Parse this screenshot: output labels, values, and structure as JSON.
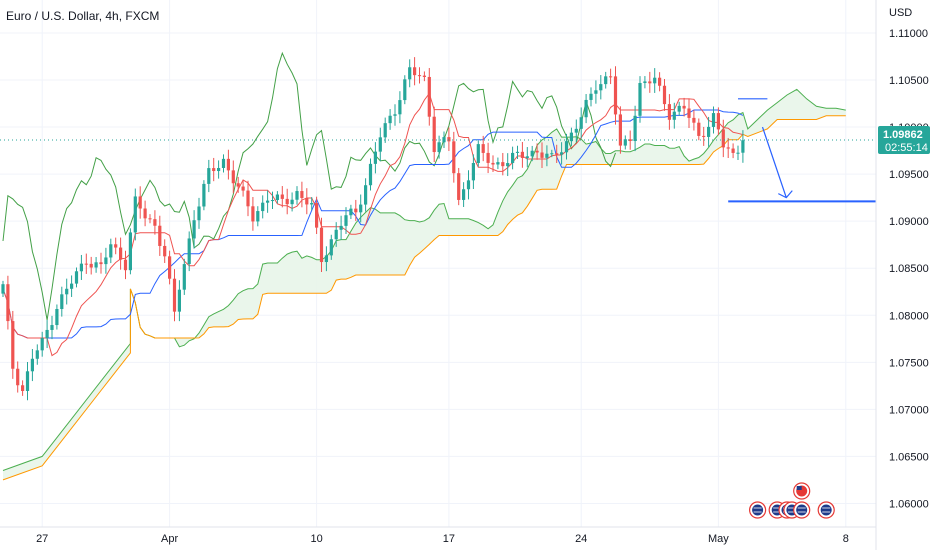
{
  "chart_data": {
    "type": "candlestick",
    "title": "Euro / U.S. Dollar, 4h, FXCM",
    "currency": "USD",
    "y_ticks": [
      "1.11000",
      "1.10500",
      "1.10000",
      "1.09500",
      "1.09000",
      "1.08500",
      "1.08000",
      "1.07500",
      "1.07000",
      "1.06500",
      "1.06000"
    ],
    "ylim": [
      1.0575,
      1.1135
    ],
    "x_ticks": [
      {
        "label": "27",
        "bar": 8
      },
      {
        "label": "Apr",
        "bar": 34
      },
      {
        "label": "10",
        "bar": 64
      },
      {
        "label": "17",
        "bar": 91
      },
      {
        "label": "24",
        "bar": 118
      },
      {
        "label": "May",
        "bar": 146
      },
      {
        "label": "8",
        "bar": 172
      }
    ],
    "bars_shown": 152,
    "last_price": "1.09862",
    "countdown": "02:55:14",
    "colors": {
      "up": "#26a69a",
      "down": "#ef5350",
      "tenkan": "#ef5350",
      "kijun": "#2962ff",
      "chikou": "#43a047",
      "span_a": "#4caf50",
      "span_b": "#ff9800",
      "cloud": "#e8f5e9",
      "projection": "#2962ff",
      "last_price_badge": "#26a69a"
    },
    "anchors": [
      [
        0,
        1.083
      ],
      [
        2,
        1.0745
      ],
      [
        4,
        1.072
      ],
      [
        6,
        1.0755
      ],
      [
        8,
        1.077
      ],
      [
        11,
        1.081
      ],
      [
        14,
        1.0835
      ],
      [
        17,
        1.086
      ],
      [
        20,
        1.085
      ],
      [
        22,
        1.0875
      ],
      [
        25,
        1.0855
      ],
      [
        27,
        1.092
      ],
      [
        29,
        1.0905
      ],
      [
        31,
        1.0895
      ],
      [
        33,
        1.0865
      ],
      [
        35,
        1.08
      ],
      [
        36,
        1.083
      ],
      [
        39,
        1.0905
      ],
      [
        42,
        1.095
      ],
      [
        45,
        1.0965
      ],
      [
        48,
        1.0935
      ],
      [
        51,
        1.0905
      ],
      [
        54,
        1.0925
      ],
      [
        57,
        1.092
      ],
      [
        60,
        1.093
      ],
      [
        63,
        1.0915
      ],
      [
        65,
        1.086
      ],
      [
        67,
        1.088
      ],
      [
        70,
        1.0905
      ],
      [
        72,
        1.091
      ],
      [
        74,
        1.094
      ],
      [
        77,
        1.099
      ],
      [
        80,
        1.102
      ],
      [
        83,
        1.106
      ],
      [
        86,
        1.105
      ],
      [
        88,
        1.098
      ],
      [
        91,
        1.0985
      ],
      [
        93,
        1.092
      ],
      [
        95,
        1.095
      ],
      [
        97,
        1.0975
      ],
      [
        100,
        1.096
      ],
      [
        103,
        1.0965
      ],
      [
        106,
        1.097
      ],
      [
        109,
        1.0975
      ],
      [
        112,
        1.0965
      ],
      [
        115,
        1.0985
      ],
      [
        118,
        1.101
      ],
      [
        121,
        1.1045
      ],
      [
        124,
        1.1055
      ],
      [
        126,
        1.0975
      ],
      [
        128,
        1.099
      ],
      [
        130,
        1.1045
      ],
      [
        133,
        1.105
      ],
      [
        136,
        1.1015
      ],
      [
        139,
        1.102
      ],
      [
        142,
        1.099
      ],
      [
        145,
        1.101
      ],
      [
        147,
        1.098
      ],
      [
        149,
        1.097
      ],
      [
        151,
        1.0986
      ]
    ],
    "span_a_future": [
      [
        152,
        1.0998
      ],
      [
        154,
        1.1008
      ],
      [
        156,
        1.1018
      ],
      [
        158,
        1.1026
      ],
      [
        160,
        1.1034
      ],
      [
        162,
        1.104
      ],
      [
        164,
        1.103
      ],
      [
        166,
        1.1022
      ],
      [
        168,
        1.102
      ],
      [
        170,
        1.102
      ],
      [
        172,
        1.1018
      ]
    ],
    "span_b_future": [
      [
        152,
        1.099
      ],
      [
        156,
        1.0998
      ],
      [
        158,
        1.1008
      ],
      [
        166,
        1.1008
      ],
      [
        168,
        1.1012
      ],
      [
        172,
        1.1012
      ]
    ],
    "projection": {
      "from_bar": 155,
      "to_bar": 157,
      "from_price": 1.1,
      "to_price": 1.0925
    },
    "target_line": {
      "price": 1.0921,
      "start_bar": 148
    },
    "resistance_line": {
      "price": 1.103,
      "start_bar": 150,
      "end_bar": 156
    }
  }
}
